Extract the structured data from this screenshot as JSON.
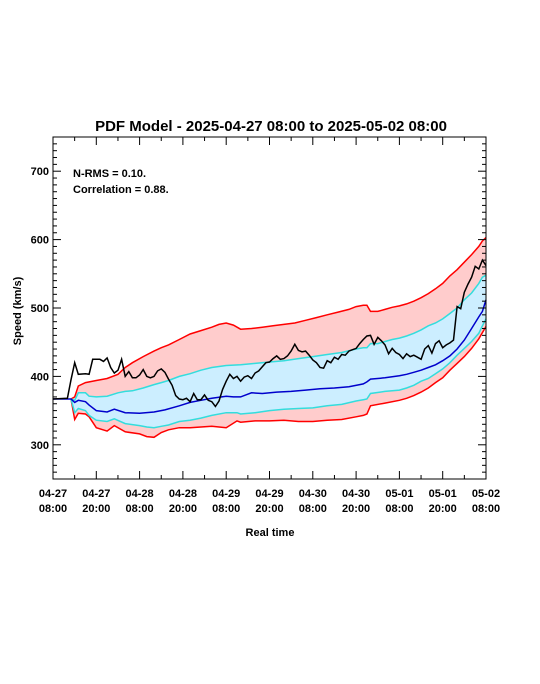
{
  "chart_data": {
    "type": "line",
    "title": "PDF Model - 2025-04-27 08:00 to 2025-05-02 08:00",
    "xlabel": "Real time",
    "ylabel": "Speed (km/s)",
    "xlim": [
      0,
      120
    ],
    "ylim": [
      250,
      750
    ],
    "yticks": [
      300,
      400,
      500,
      600,
      700
    ],
    "xtick_labels": [
      {
        "x": 0,
        "line1": "04-27",
        "line2": "08:00"
      },
      {
        "x": 12,
        "line1": "04-27",
        "line2": "20:00"
      },
      {
        "x": 24,
        "line1": "04-28",
        "line2": "08:00"
      },
      {
        "x": 36,
        "line1": "04-28",
        "line2": "20:00"
      },
      {
        "x": 48,
        "line1": "04-29",
        "line2": "08:00"
      },
      {
        "x": 60,
        "line1": "04-29",
        "line2": "20:00"
      },
      {
        "x": 72,
        "line1": "04-30",
        "line2": "08:00"
      },
      {
        "x": 84,
        "line1": "04-30",
        "line2": "20:00"
      },
      {
        "x": 96,
        "line1": "05-01",
        "line2": "08:00"
      },
      {
        "x": 108,
        "line1": "05-01",
        "line2": "20:00"
      },
      {
        "x": 120,
        "line1": "05-02",
        "line2": "08:00"
      }
    ],
    "annotations": [
      "N-RMS = 0.10.",
      "Correlation = 0.88."
    ],
    "colors": {
      "outer_band": "#ff0000",
      "outer_fill": "#ffcccc",
      "inner_band": "#33dddd",
      "inner_fill": "#cceeff",
      "median": "#0000cc",
      "observed": "#000000"
    },
    "upper_outer": [
      [
        5,
        367
      ],
      [
        6,
        370
      ],
      [
        7,
        386
      ],
      [
        9,
        391
      ],
      [
        12,
        394
      ],
      [
        15,
        397
      ],
      [
        18,
        403
      ],
      [
        20,
        413
      ],
      [
        22,
        420
      ],
      [
        25,
        429
      ],
      [
        28,
        437
      ],
      [
        30,
        442
      ],
      [
        32,
        446
      ],
      [
        35,
        454
      ],
      [
        38,
        462
      ],
      [
        41,
        467
      ],
      [
        44,
        472
      ],
      [
        46,
        476
      ],
      [
        48,
        478
      ],
      [
        50,
        475
      ],
      [
        52,
        469
      ],
      [
        55,
        470
      ],
      [
        58,
        472
      ],
      [
        61,
        474
      ],
      [
        64,
        476
      ],
      [
        67,
        478
      ],
      [
        70,
        482
      ],
      [
        73,
        486
      ],
      [
        76,
        490
      ],
      [
        79,
        494
      ],
      [
        82,
        498
      ],
      [
        84,
        502
      ],
      [
        86,
        504
      ],
      [
        87,
        504
      ],
      [
        88,
        495
      ],
      [
        90,
        495
      ],
      [
        92,
        498
      ],
      [
        94,
        501
      ],
      [
        96,
        503
      ],
      [
        98,
        506
      ],
      [
        100,
        510
      ],
      [
        102,
        515
      ],
      [
        104,
        521
      ],
      [
        106,
        528
      ],
      [
        108,
        536
      ],
      [
        110,
        547
      ],
      [
        112,
        556
      ],
      [
        114,
        567
      ],
      [
        116,
        578
      ],
      [
        118,
        590
      ],
      [
        119,
        598
      ],
      [
        120,
        603
      ]
    ],
    "upper_inner": [
      [
        5,
        367
      ],
      [
        6,
        365
      ],
      [
        7,
        376
      ],
      [
        9,
        376
      ],
      [
        10,
        371
      ],
      [
        12,
        370
      ],
      [
        15,
        371
      ],
      [
        18,
        376
      ],
      [
        20,
        378
      ],
      [
        22,
        379
      ],
      [
        25,
        383
      ],
      [
        28,
        388
      ],
      [
        30,
        391
      ],
      [
        32,
        394
      ],
      [
        35,
        400
      ],
      [
        38,
        404
      ],
      [
        41,
        409
      ],
      [
        44,
        413
      ],
      [
        48,
        416
      ],
      [
        52,
        417
      ],
      [
        56,
        419
      ],
      [
        60,
        421
      ],
      [
        64,
        423
      ],
      [
        68,
        426
      ],
      [
        72,
        429
      ],
      [
        76,
        432
      ],
      [
        80,
        435
      ],
      [
        84,
        440
      ],
      [
        86,
        442
      ],
      [
        87,
        442
      ],
      [
        88,
        448
      ],
      [
        90,
        448
      ],
      [
        92,
        451
      ],
      [
        94,
        454
      ],
      [
        96,
        456
      ],
      [
        98,
        459
      ],
      [
        100,
        463
      ],
      [
        102,
        468
      ],
      [
        104,
        474
      ],
      [
        106,
        478
      ],
      [
        108,
        484
      ],
      [
        110,
        492
      ],
      [
        112,
        500
      ],
      [
        114,
        512
      ],
      [
        116,
        522
      ],
      [
        118,
        536
      ],
      [
        119,
        545
      ],
      [
        120,
        548
      ]
    ],
    "median": [
      [
        0,
        367
      ],
      [
        5,
        367
      ],
      [
        6,
        362
      ],
      [
        7,
        365
      ],
      [
        9,
        363
      ],
      [
        10,
        358
      ],
      [
        12,
        350
      ],
      [
        15,
        348
      ],
      [
        17,
        352
      ],
      [
        20,
        347
      ],
      [
        24,
        346
      ],
      [
        28,
        348
      ],
      [
        31,
        351
      ],
      [
        35,
        357
      ],
      [
        38,
        362
      ],
      [
        41,
        365
      ],
      [
        44,
        368
      ],
      [
        48,
        371
      ],
      [
        50,
        370
      ],
      [
        52,
        370
      ],
      [
        55,
        376
      ],
      [
        58,
        375
      ],
      [
        62,
        377
      ],
      [
        66,
        378
      ],
      [
        70,
        380
      ],
      [
        74,
        382
      ],
      [
        78,
        383
      ],
      [
        82,
        385
      ],
      [
        85,
        388
      ],
      [
        86,
        389
      ],
      [
        87,
        392
      ],
      [
        88,
        396
      ],
      [
        92,
        398
      ],
      [
        96,
        401
      ],
      [
        98,
        403
      ],
      [
        100,
        406
      ],
      [
        102,
        409
      ],
      [
        104,
        413
      ],
      [
        106,
        417
      ],
      [
        108,
        423
      ],
      [
        110,
        430
      ],
      [
        112,
        440
      ],
      [
        114,
        453
      ],
      [
        116,
        470
      ],
      [
        118,
        487
      ],
      [
        119,
        495
      ],
      [
        120,
        512
      ]
    ],
    "lower_inner": [
      [
        5,
        367
      ],
      [
        6,
        347
      ],
      [
        7,
        353
      ],
      [
        9,
        350
      ],
      [
        10,
        343
      ],
      [
        12,
        336
      ],
      [
        15,
        334
      ],
      [
        17,
        338
      ],
      [
        20,
        331
      ],
      [
        24,
        328
      ],
      [
        26,
        326
      ],
      [
        28,
        325
      ],
      [
        30,
        327
      ],
      [
        32,
        329
      ],
      [
        35,
        334
      ],
      [
        38,
        336
      ],
      [
        41,
        339
      ],
      [
        44,
        343
      ],
      [
        48,
        347
      ],
      [
        51,
        347
      ],
      [
        52,
        345
      ],
      [
        56,
        347
      ],
      [
        60,
        350
      ],
      [
        64,
        352
      ],
      [
        68,
        353
      ],
      [
        72,
        354
      ],
      [
        76,
        357
      ],
      [
        80,
        359
      ],
      [
        84,
        364
      ],
      [
        86,
        366
      ],
      [
        87,
        367
      ],
      [
        88,
        375
      ],
      [
        92,
        378
      ],
      [
        96,
        380
      ],
      [
        98,
        383
      ],
      [
        100,
        387
      ],
      [
        102,
        393
      ],
      [
        104,
        397
      ],
      [
        106,
        404
      ],
      [
        108,
        411
      ],
      [
        110,
        420
      ],
      [
        112,
        431
      ],
      [
        114,
        441
      ],
      [
        116,
        451
      ],
      [
        118,
        463
      ],
      [
        119,
        474
      ],
      [
        120,
        484
      ]
    ],
    "lower_outer": [
      [
        5,
        367
      ],
      [
        6,
        337
      ],
      [
        7,
        346
      ],
      [
        9,
        345
      ],
      [
        10,
        341
      ],
      [
        12,
        325
      ],
      [
        15,
        320
      ],
      [
        17,
        328
      ],
      [
        20,
        319
      ],
      [
        24,
        316
      ],
      [
        26,
        312
      ],
      [
        28,
        311
      ],
      [
        30,
        318
      ],
      [
        32,
        322
      ],
      [
        35,
        325
      ],
      [
        38,
        325
      ],
      [
        41,
        326
      ],
      [
        44,
        327
      ],
      [
        48,
        325
      ],
      [
        51,
        335
      ],
      [
        52,
        333
      ],
      [
        56,
        335
      ],
      [
        60,
        335
      ],
      [
        64,
        336
      ],
      [
        68,
        334
      ],
      [
        72,
        334
      ],
      [
        76,
        336
      ],
      [
        80,
        337
      ],
      [
        84,
        341
      ],
      [
        86,
        343
      ],
      [
        87,
        345
      ],
      [
        88,
        357
      ],
      [
        92,
        361
      ],
      [
        96,
        365
      ],
      [
        98,
        368
      ],
      [
        100,
        372
      ],
      [
        102,
        377
      ],
      [
        104,
        383
      ],
      [
        106,
        391
      ],
      [
        108,
        398
      ],
      [
        110,
        409
      ],
      [
        112,
        419
      ],
      [
        114,
        429
      ],
      [
        116,
        441
      ],
      [
        118,
        455
      ],
      [
        119,
        464
      ],
      [
        120,
        473
      ]
    ],
    "observed": [
      [
        0,
        367
      ],
      [
        4,
        368
      ],
      [
        5,
        395
      ],
      [
        6,
        420
      ],
      [
        7,
        403
      ],
      [
        9,
        404
      ],
      [
        10,
        403
      ],
      [
        11,
        425
      ],
      [
        13,
        425
      ],
      [
        14,
        422
      ],
      [
        15,
        427
      ],
      [
        16,
        413
      ],
      [
        17,
        405
      ],
      [
        18,
        409
      ],
      [
        19,
        425
      ],
      [
        20,
        400
      ],
      [
        21,
        407
      ],
      [
        22,
        398
      ],
      [
        23,
        398
      ],
      [
        24,
        402
      ],
      [
        25,
        410
      ],
      [
        26,
        400
      ],
      [
        27,
        398
      ],
      [
        28,
        400
      ],
      [
        29,
        408
      ],
      [
        30,
        411
      ],
      [
        31,
        406
      ],
      [
        32,
        396
      ],
      [
        33,
        387
      ],
      [
        34,
        372
      ],
      [
        35,
        367
      ],
      [
        36,
        366
      ],
      [
        37,
        368
      ],
      [
        38,
        363
      ],
      [
        39,
        375
      ],
      [
        40,
        366
      ],
      [
        41,
        366
      ],
      [
        42,
        373
      ],
      [
        43,
        365
      ],
      [
        44,
        363
      ],
      [
        45,
        356
      ],
      [
        46,
        364
      ],
      [
        47,
        381
      ],
      [
        48,
        393
      ],
      [
        49,
        403
      ],
      [
        50,
        397
      ],
      [
        51,
        400
      ],
      [
        52,
        393
      ],
      [
        53,
        399
      ],
      [
        54,
        401
      ],
      [
        55,
        397
      ],
      [
        56,
        405
      ],
      [
        57,
        408
      ],
      [
        58,
        414
      ],
      [
        59,
        420
      ],
      [
        60,
        421
      ],
      [
        61,
        426
      ],
      [
        62,
        430
      ],
      [
        63,
        425
      ],
      [
        64,
        426
      ],
      [
        65,
        430
      ],
      [
        66,
        437
      ],
      [
        67,
        447
      ],
      [
        68,
        438
      ],
      [
        69,
        436
      ],
      [
        70,
        437
      ],
      [
        71,
        431
      ],
      [
        72,
        424
      ],
      [
        73,
        420
      ],
      [
        74,
        413
      ],
      [
        75,
        412
      ],
      [
        76,
        423
      ],
      [
        77,
        420
      ],
      [
        78,
        428
      ],
      [
        79,
        425
      ],
      [
        80,
        432
      ],
      [
        81,
        431
      ],
      [
        82,
        437
      ],
      [
        83,
        439
      ],
      [
        84,
        441
      ],
      [
        85,
        448
      ],
      [
        86,
        454
      ],
      [
        87,
        459
      ],
      [
        88,
        460
      ],
      [
        89,
        447
      ],
      [
        90,
        457
      ],
      [
        91,
        452
      ],
      [
        92,
        446
      ],
      [
        93,
        433
      ],
      [
        94,
        441
      ],
      [
        95,
        435
      ],
      [
        96,
        432
      ],
      [
        97,
        426
      ],
      [
        98,
        433
      ],
      [
        99,
        429
      ],
      [
        100,
        431
      ],
      [
        101,
        428
      ],
      [
        102,
        425
      ],
      [
        103,
        440
      ],
      [
        104,
        445
      ],
      [
        105,
        434
      ],
      [
        106,
        448
      ],
      [
        107,
        452
      ],
      [
        108,
        442
      ],
      [
        109,
        446
      ],
      [
        110,
        449
      ],
      [
        111,
        453
      ],
      [
        112,
        502
      ],
      [
        113,
        499
      ],
      [
        114,
        523
      ],
      [
        115,
        535
      ],
      [
        116,
        545
      ],
      [
        117,
        561
      ],
      [
        118,
        557
      ],
      [
        119,
        570
      ],
      [
        120,
        562
      ]
    ]
  }
}
